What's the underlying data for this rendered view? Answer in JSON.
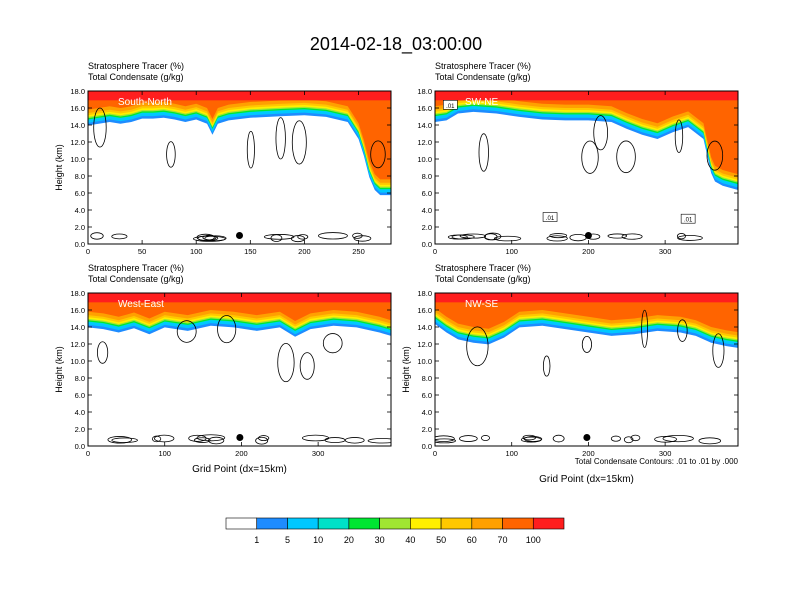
{
  "title": "2014-02-18_03:00:00",
  "colors": {
    "levels": [
      "#ffffff",
      "#1e8cff",
      "#00c8ff",
      "#00e1c8",
      "#00e632",
      "#a0e632",
      "#fff000",
      "#ffc800",
      "#ffa000",
      "#ff6400",
      "#ff1e1e"
    ]
  },
  "colorbar": {
    "labels": [
      "1",
      "5",
      "10",
      "20",
      "30",
      "40",
      "50",
      "60",
      "70",
      "100"
    ]
  },
  "footnote": "Total Condensate Contours: .01 to .01 by .000",
  "chart_data": [
    {
      "type": "heatmap",
      "panel": "South-North",
      "header1": "Stratosphere Tracer   (%)",
      "header2": "Total Condensate   (g/kg)",
      "ylabel": "Height (km)",
      "xlabel": "",
      "xlim": [
        0,
        280
      ],
      "ylim": [
        0,
        18
      ],
      "xticks": [
        "0",
        "50",
        "100",
        "150",
        "200",
        "250"
      ],
      "xtick_values": [
        0,
        50,
        100,
        150,
        200,
        250
      ],
      "yticks": [
        "0.0",
        "2.0",
        "4.0",
        "6.0",
        "8.0",
        "10.0",
        "12.0",
        "14.0",
        "16.0",
        "18.0"
      ],
      "tracer_base_km": [
        [
          0,
          14.6
        ],
        [
          10,
          14.8
        ],
        [
          20,
          15.0
        ],
        [
          30,
          14.8
        ],
        [
          40,
          15.0
        ],
        [
          50,
          15.4
        ],
        [
          60,
          15.4
        ],
        [
          70,
          15.5
        ],
        [
          80,
          15.3
        ],
        [
          90,
          15.0
        ],
        [
          100,
          15.3
        ],
        [
          110,
          14.8
        ],
        [
          115,
          13.5
        ],
        [
          120,
          14.8
        ],
        [
          130,
          15.2
        ],
        [
          150,
          15.5
        ],
        [
          180,
          15.7
        ],
        [
          200,
          15.8
        ],
        [
          220,
          15.6
        ],
        [
          240,
          15.0
        ],
        [
          250,
          13.0
        ],
        [
          255,
          11.0
        ],
        [
          260,
          8.5
        ],
        [
          265,
          7.0
        ],
        [
          270,
          6.4
        ],
        [
          280,
          6.4
        ]
      ],
      "marker": {
        "x": 140,
        "y": 1.0
      },
      "contour_labels": []
    },
    {
      "type": "heatmap",
      "panel": "SW-NE",
      "header1": "Stratosphere Tracer   (%)",
      "header2": "Total Condensate   (g/kg)",
      "ylabel": "",
      "xlabel": "",
      "xlim": [
        0,
        395
      ],
      "ylim": [
        0,
        18
      ],
      "xticks": [
        "0",
        "100",
        "200",
        "300"
      ],
      "xtick_values": [
        0,
        100,
        200,
        300
      ],
      "yticks": [
        "0.0",
        "2.0",
        "4.0",
        "6.0",
        "8.0",
        "10.0",
        "12.0",
        "14.0",
        "16.0",
        "18.0"
      ],
      "tracer_base_km": [
        [
          0,
          15.0
        ],
        [
          15,
          15.2
        ],
        [
          30,
          16.0
        ],
        [
          50,
          16.2
        ],
        [
          80,
          16.0
        ],
        [
          110,
          15.6
        ],
        [
          140,
          15.3
        ],
        [
          170,
          15.2
        ],
        [
          200,
          15.2
        ],
        [
          230,
          15.0
        ],
        [
          250,
          14.2
        ],
        [
          270,
          13.5
        ],
        [
          290,
          13.0
        ],
        [
          310,
          13.8
        ],
        [
          330,
          14.4
        ],
        [
          350,
          13.0
        ],
        [
          355,
          11.0
        ],
        [
          360,
          9.0
        ],
        [
          365,
          8.0
        ],
        [
          375,
          7.5
        ],
        [
          395,
          7.0
        ]
      ],
      "marker": {
        "x": 200,
        "y": 1.0
      },
      "contour_labels": [
        ".01",
        ".01",
        ".01"
      ]
    },
    {
      "type": "heatmap",
      "panel": "West-East",
      "header1": "Stratosphere Tracer   (%)",
      "header2": "Total Condensate   (g/kg)",
      "ylabel": "Height (km)",
      "xlabel": "Grid Point (dx=15km)",
      "xlim": [
        0,
        395
      ],
      "ylim": [
        0,
        18
      ],
      "xticks": [
        "0",
        "100",
        "200",
        "300"
      ],
      "xtick_values": [
        0,
        100,
        200,
        300
      ],
      "yticks": [
        "0.0",
        "2.0",
        "4.0",
        "6.0",
        "8.0",
        "10.0",
        "12.0",
        "14.0",
        "16.0",
        "18.0"
      ],
      "tracer_base_km": [
        [
          0,
          14.6
        ],
        [
          20,
          14.4
        ],
        [
          40,
          14.0
        ],
        [
          60,
          14.5
        ],
        [
          80,
          13.8
        ],
        [
          100,
          14.6
        ],
        [
          130,
          14.2
        ],
        [
          160,
          14.8
        ],
        [
          190,
          14.6
        ],
        [
          220,
          14.2
        ],
        [
          250,
          14.6
        ],
        [
          270,
          13.5
        ],
        [
          290,
          14.4
        ],
        [
          320,
          14.8
        ],
        [
          350,
          14.6
        ],
        [
          380,
          14.0
        ],
        [
          395,
          13.6
        ]
      ],
      "marker": {
        "x": 198,
        "y": 1.0
      },
      "contour_labels": []
    },
    {
      "type": "heatmap",
      "panel": "NW-SE",
      "header1": "Stratosphere Tracer   (%)",
      "header2": "Total Condensate   (g/kg)",
      "ylabel": "Height (km)",
      "xlabel": "Grid Point (dx=15km)",
      "xlim": [
        0,
        395
      ],
      "ylim": [
        0,
        18
      ],
      "xticks": [
        "0",
        "100",
        "200",
        "300"
      ],
      "xtick_values": [
        0,
        100,
        200,
        300
      ],
      "yticks": [
        "0.0",
        "2.0",
        "4.0",
        "6.0",
        "8.0",
        "10.0",
        "12.0",
        "14.0",
        "16.0",
        "18.0"
      ],
      "tracer_base_km": [
        [
          0,
          15.0
        ],
        [
          15,
          14.0
        ],
        [
          30,
          13.2
        ],
        [
          50,
          12.8
        ],
        [
          70,
          12.6
        ],
        [
          90,
          13.4
        ],
        [
          110,
          14.6
        ],
        [
          140,
          14.8
        ],
        [
          170,
          14.4
        ],
        [
          200,
          14.0
        ],
        [
          230,
          13.6
        ],
        [
          260,
          13.8
        ],
        [
          290,
          14.2
        ],
        [
          320,
          14.0
        ],
        [
          340,
          13.6
        ],
        [
          360,
          12.8
        ],
        [
          380,
          12.4
        ],
        [
          395,
          12.2
        ]
      ],
      "marker": {
        "x": 198,
        "y": 1.0
      },
      "contour_labels": []
    }
  ]
}
